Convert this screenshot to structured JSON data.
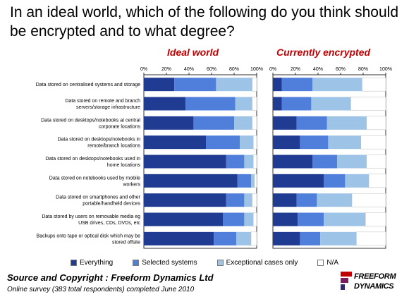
{
  "title": "In an ideal world, which of the following do you think should be encrypted and to what degree?",
  "colors": {
    "everything": "#1f3b92",
    "selected": "#4f7fdb",
    "exceptional": "#9dc3e6",
    "na": "#ffffff",
    "panel_title": "#c00000"
  },
  "chart_data": {
    "type": "bar",
    "orientation": "horizontal",
    "stacked": "100%",
    "categories": [
      "Data stored on centralised systems and storage",
      "Data stored on remote and branch servers/storage infrastructure",
      "Data stored on desktops/notebooks at central corporate locations",
      "Data stored on desktops/notebooks in remote/branch locations",
      "Data stored on desktops/notebooks used in home locations",
      "Data stored on notebooks used by mobile workers",
      "Data stored on smartphones and other portable/handheld devices",
      "Data stored by users on removable media eg USB drives, CDs, DVDs, etc",
      "Backups onto tape or optical disk which may be stored offsite"
    ],
    "category_lines": [
      [
        "Data stored on centralised systems and storage"
      ],
      [
        "Data stored on remote and branch",
        "servers/storage infrastructure"
      ],
      [
        "Data stored on desktops/notebooks at central",
        "corporate locations"
      ],
      [
        "Data stored on desktops/notebooks in",
        "remote/branch locations"
      ],
      [
        "Data stored on desktops/notebooks used in",
        "home locations"
      ],
      [
        "Data stored on notebooks used by mobile",
        "workers"
      ],
      [
        "Data stored on smartphones and other",
        "portable/handheld devices"
      ],
      [
        "Data stored by users on removable media eg",
        "USB drives, CDs, DVDs, etc"
      ],
      [
        "Backups onto tape or optical disk which may be",
        "stored offsite"
      ]
    ],
    "xlim": [
      0,
      100
    ],
    "x_ticks": [
      "0%",
      "20%",
      "40%",
      "60%",
      "80%",
      "100%"
    ],
    "legend": [
      "Everything",
      "Selected systems",
      "Exceptional cases only",
      "N/A"
    ],
    "legend_position": "bottom",
    "grid": false,
    "panels": [
      {
        "title": "Ideal world",
        "series": [
          {
            "name": "Everything",
            "values": [
              27,
              37,
              44,
              55,
              73,
              83,
              73,
              70,
              62
            ]
          },
          {
            "name": "Selected systems",
            "values": [
              37,
              44,
              36,
              30,
              16,
              12,
              16,
              19,
              20
            ]
          },
          {
            "name": "Exceptional cases only",
            "values": [
              32,
              15,
              16,
              12,
              8,
              3,
              7,
              8,
              13
            ]
          },
          {
            "name": "N/A",
            "values": [
              4,
              4,
              4,
              3,
              3,
              2,
              4,
              3,
              5
            ]
          }
        ]
      },
      {
        "title": "Currently encrypted",
        "series": [
          {
            "name": "Everything",
            "values": [
              8,
              8,
              21,
              24,
              35,
              45,
              21,
              22,
              24
            ]
          },
          {
            "name": "Selected systems",
            "values": [
              27,
              26,
              27,
              25,
              22,
              19,
              18,
              23,
              18
            ]
          },
          {
            "name": "Exceptional cases only",
            "values": [
              44,
              35,
              35,
              29,
              26,
              21,
              31,
              37,
              32
            ]
          },
          {
            "name": "N/A",
            "values": [
              21,
              31,
              17,
              22,
              17,
              15,
              30,
              18,
              26
            ]
          }
        ]
      }
    ]
  },
  "source": "Source and Copyright : Freeform Dynamics Ltd",
  "survey": "Online survey (383 total respondents) completed June 2010",
  "logo": {
    "line1": "FREEFORM",
    "line2": "DYNAMICS",
    "icon": "freeform-dynamics-logo-icon"
  }
}
